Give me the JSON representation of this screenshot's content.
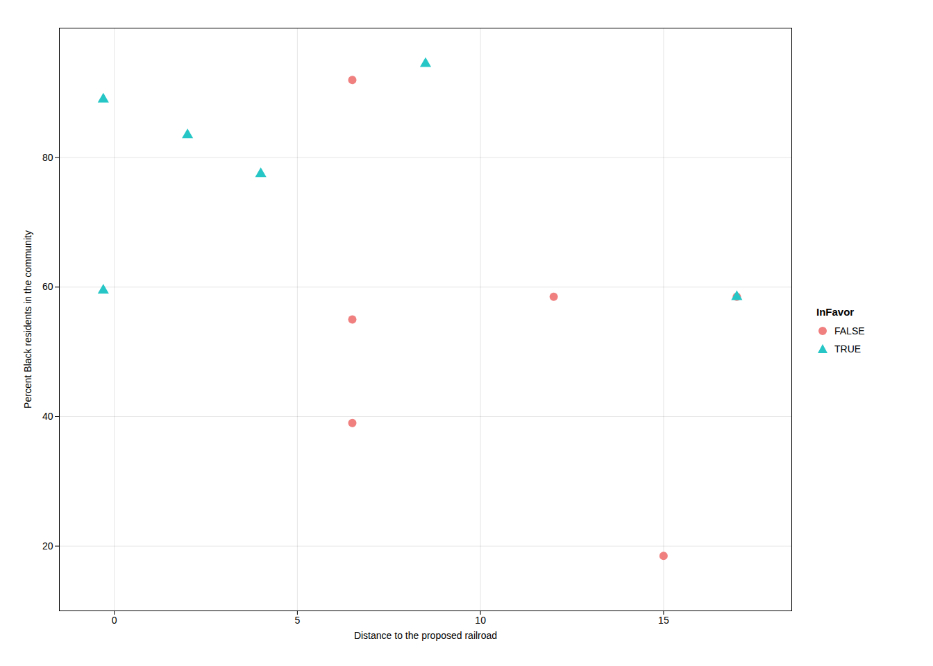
{
  "chart_data": {
    "type": "scatter",
    "xlabel": "Distance to the proposed railroad",
    "ylabel": "Percent Black residents in the community",
    "legend_title": "InFavor",
    "legend": "right",
    "grid": true,
    "xlim": [
      -1.5,
      18.5
    ],
    "ylim": [
      10,
      100
    ],
    "xticks": [
      0,
      5,
      10,
      15
    ],
    "yticks": [
      20,
      40,
      60,
      80
    ],
    "series": [
      {
        "name": "FALSE",
        "color": "#F08080",
        "marker": "circle",
        "x": [
          6.5,
          6.5,
          6.5,
          12,
          15,
          17
        ],
        "values": [
          92,
          55,
          39,
          58.5,
          18.5,
          58.5
        ]
      },
      {
        "name": "TRUE",
        "color": "#26C6C6",
        "marker": "triangle",
        "x": [
          -0.3,
          -0.3,
          2,
          4,
          8.5,
          17
        ],
        "values": [
          89,
          59.5,
          83.5,
          77.5,
          94.5,
          58.5
        ]
      }
    ]
  }
}
